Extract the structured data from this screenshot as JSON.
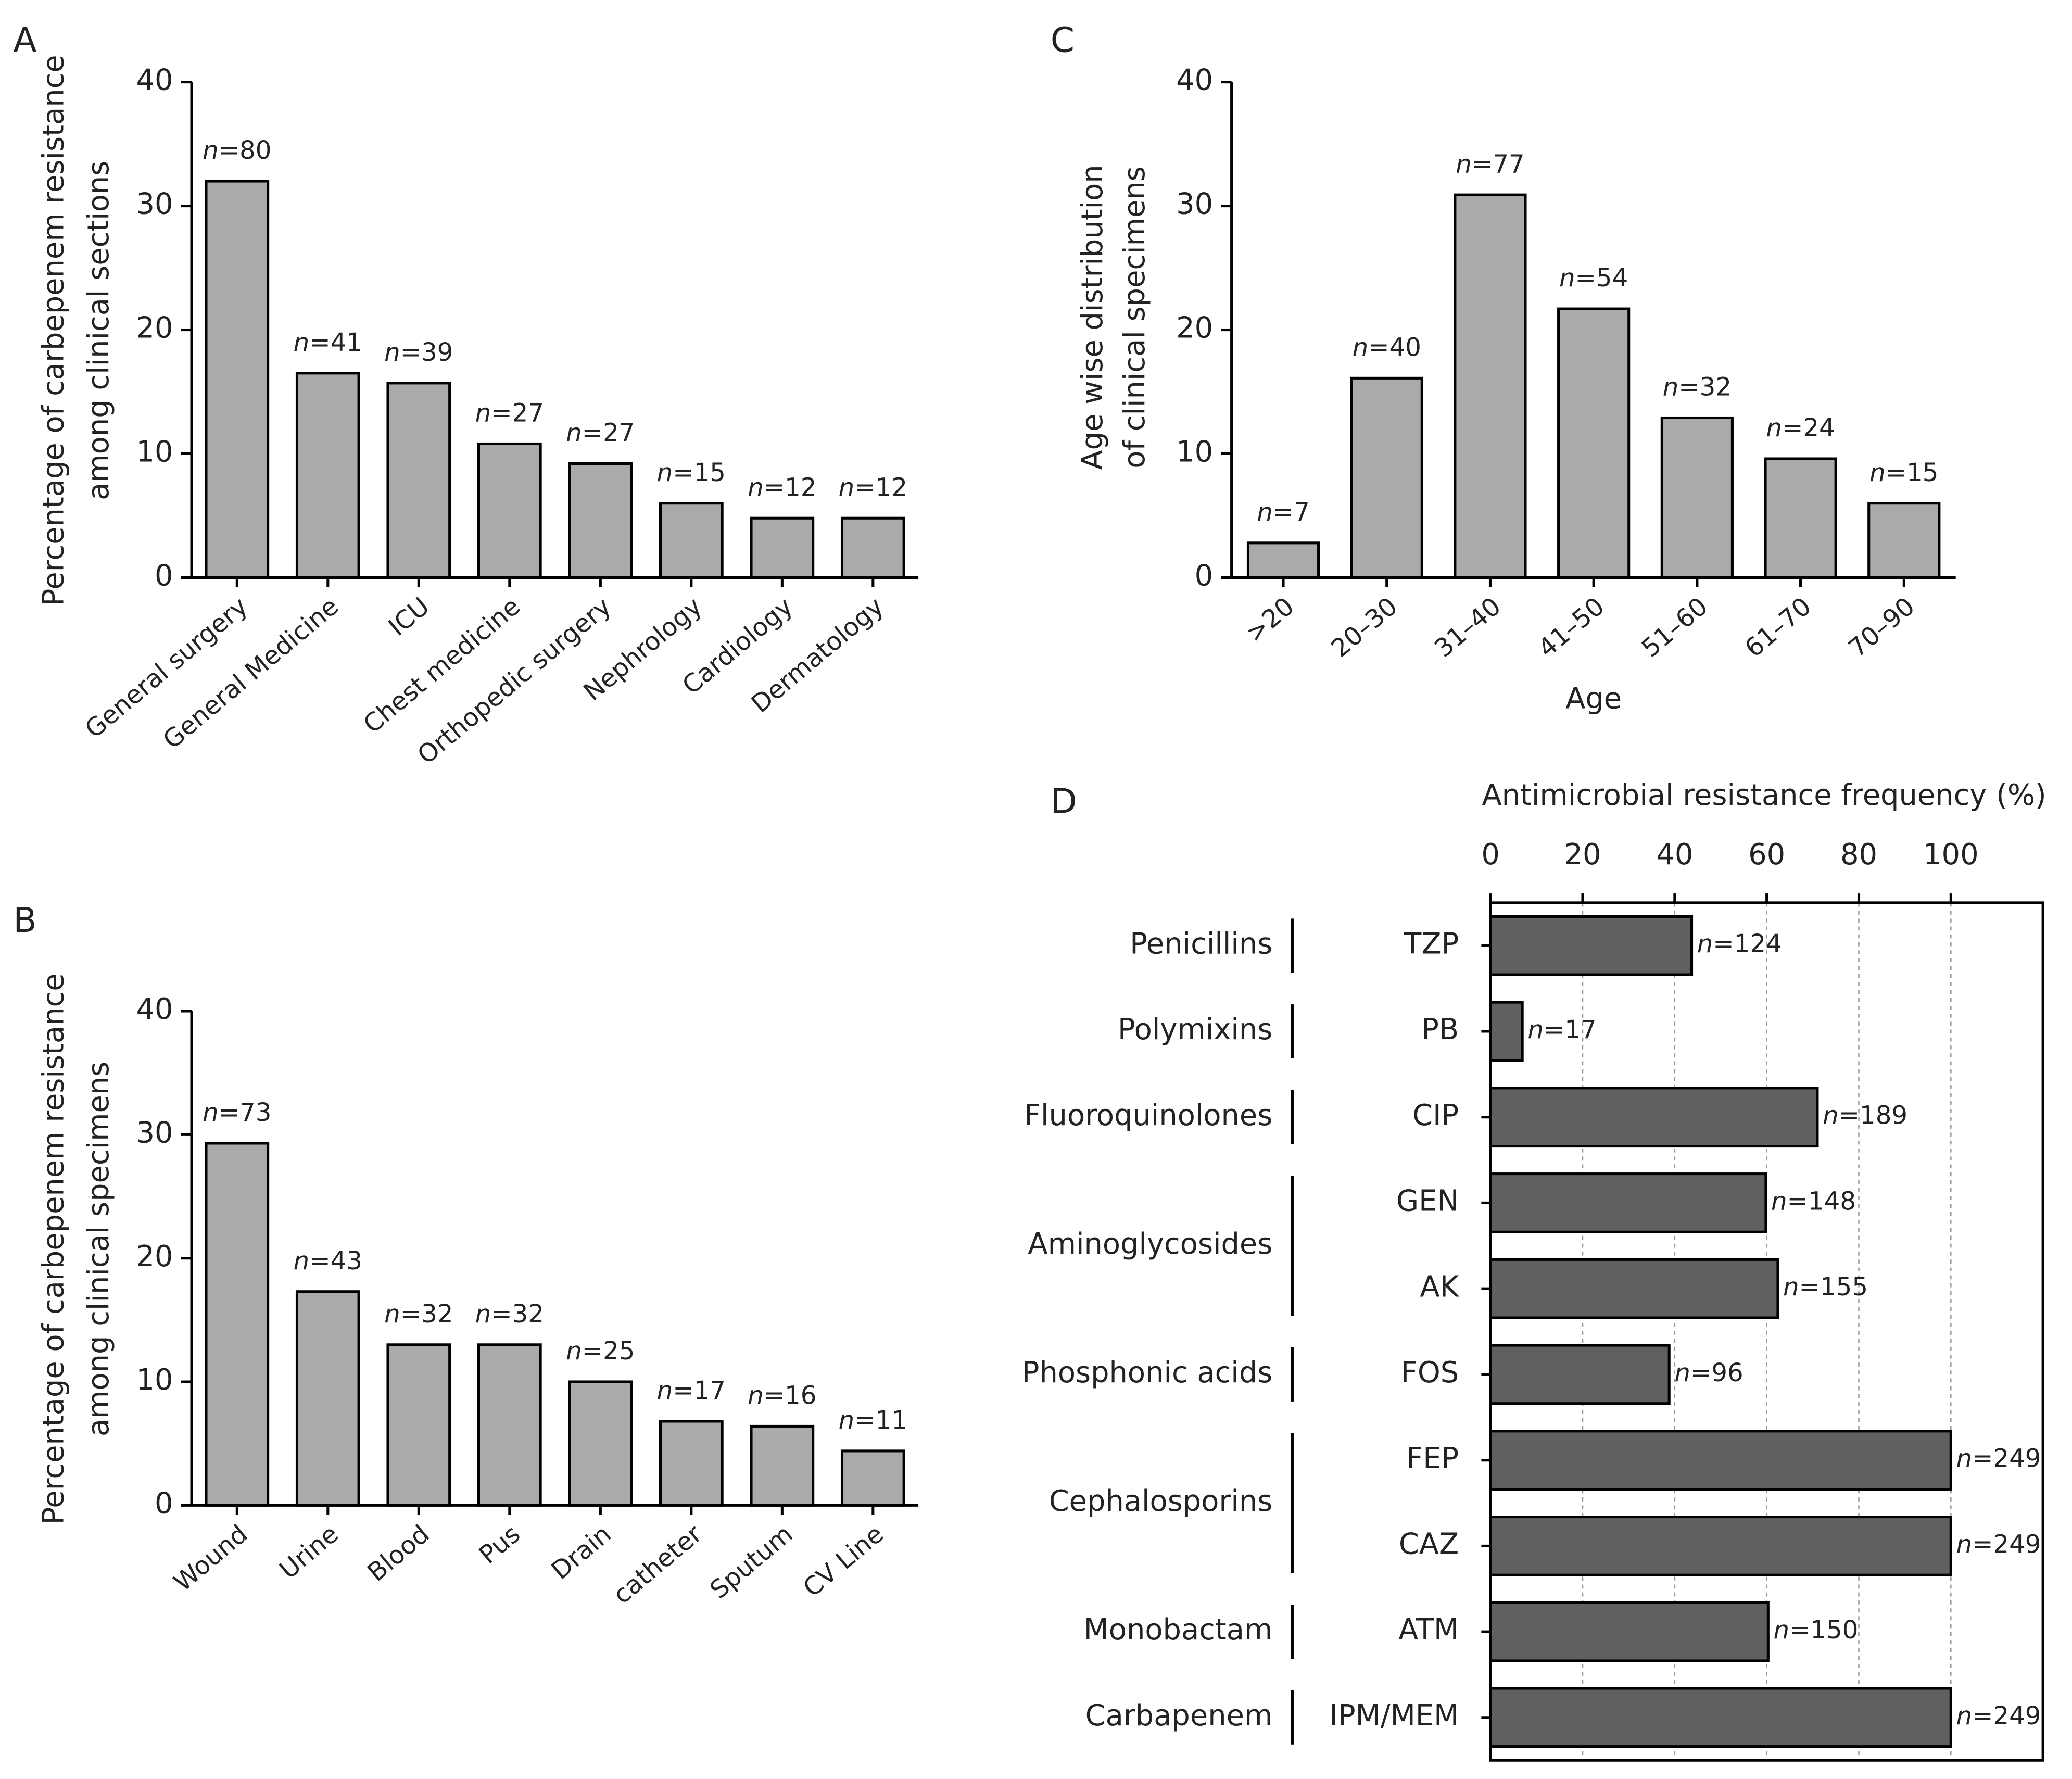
{
  "chart_data": [
    {
      "panel": "A",
      "type": "bar",
      "ylabel": [
        "Percentage of carbepenem resistance",
        "among clinical sections"
      ],
      "categories": [
        "General surgery",
        "General Medicine",
        "ICU",
        "Chest medicine",
        "Orthopedic surgery",
        "Nephrology",
        "Cardiology",
        "Dermatology"
      ],
      "values": [
        32,
        16.5,
        15.7,
        10.8,
        9.2,
        6,
        4.8,
        4.8
      ],
      "bar_labels": [
        "n=80",
        "n=41",
        "n=39",
        "n=27",
        "n=27",
        "n=15",
        "n=12",
        "n=12"
      ],
      "color": "#aaaaaa",
      "ylim": [
        0,
        40
      ],
      "yticks": [
        0,
        10,
        20,
        30,
        40
      ]
    },
    {
      "panel": "B",
      "type": "bar",
      "ylabel": [
        "Percentage of carbepenem resistance",
        "among clinical specimens"
      ],
      "categories": [
        "Wound",
        "Urine",
        "Blood",
        "Pus",
        "Drain",
        "catheter",
        "Sputum",
        "CV Line"
      ],
      "values": [
        29.3,
        17.3,
        13,
        13,
        10,
        6.8,
        6.4,
        4.4
      ],
      "bar_labels": [
        "n=73",
        "n=43",
        "n=32",
        "n=32",
        "n=25",
        "n=17",
        "n=16",
        "n=11"
      ],
      "color": "#aaaaaa",
      "ylim": [
        0,
        40
      ],
      "yticks": [
        0,
        10,
        20,
        30,
        40
      ]
    },
    {
      "panel": "C",
      "type": "bar",
      "ylabel": [
        "Age wise distribution",
        "of clinical specimens"
      ],
      "xlabel": "Age",
      "categories": [
        ">20",
        "20–30",
        "31–40",
        "41–50",
        "51–60",
        "61–70",
        "70–90"
      ],
      "values": [
        2.8,
        16.1,
        30.9,
        21.7,
        12.9,
        9.6,
        6.0
      ],
      "bar_labels": [
        "n=7",
        "n=40",
        "n=77",
        "n=54",
        "n=32",
        "n=24",
        "n=15"
      ],
      "color": "#aaaaaa",
      "ylim": [
        0,
        40
      ],
      "yticks": [
        0,
        10,
        20,
        30,
        40
      ]
    },
    {
      "panel": "D",
      "type": "barh",
      "xlabel": "Antimicrobial resistance frequency (%)",
      "color": "#606060",
      "xlim": [
        0,
        120
      ],
      "xticks": [
        0,
        20,
        40,
        60,
        80,
        100
      ],
      "grid": true,
      "groups": [
        {
          "name": "Penicillins",
          "categories": [
            "TZP"
          ],
          "values": [
            43.7
          ],
          "bar_labels": [
            "n=124"
          ]
        },
        {
          "name": "Polymixins",
          "categories": [
            "PB"
          ],
          "values": [
            6.9
          ],
          "bar_labels": [
            "n=17"
          ]
        },
        {
          "name": "Fluoroquinolones",
          "categories": [
            "CIP"
          ],
          "values": [
            71
          ],
          "bar_labels": [
            "n=189"
          ]
        },
        {
          "name": "Aminoglycosides",
          "categories": [
            "GEN",
            "AK"
          ],
          "values": [
            59.8,
            62.4
          ],
          "bar_labels": [
            "n=148",
            "n=155"
          ]
        },
        {
          "name": "Phosphonic acids",
          "categories": [
            "FOS"
          ],
          "values": [
            38.8
          ],
          "bar_labels": [
            "n=96"
          ]
        },
        {
          "name": "Cephalosporins",
          "categories": [
            "FEP",
            "CAZ"
          ],
          "values": [
            100,
            100
          ],
          "bar_labels": [
            "n=249",
            "n=249"
          ]
        },
        {
          "name": "Monobactam",
          "categories": [
            "ATM"
          ],
          "values": [
            60.3
          ],
          "bar_labels": [
            "n=150"
          ]
        },
        {
          "name": "Carbapenem",
          "categories": [
            "IPM/MEM"
          ],
          "values": [
            100
          ],
          "bar_labels": [
            "n=249"
          ]
        }
      ]
    }
  ]
}
